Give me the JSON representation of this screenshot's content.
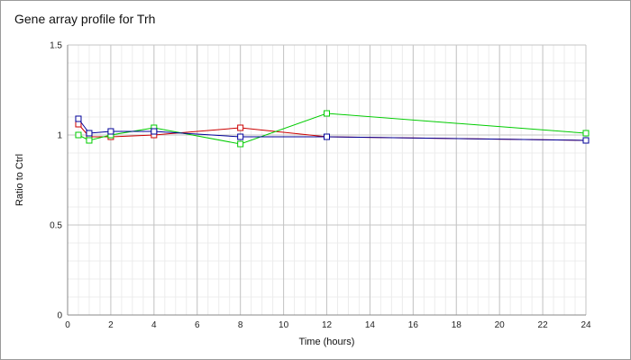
{
  "chart_data": {
    "type": "line",
    "title": "Gene array profile for Trh",
    "xlabel": "Time (hours)",
    "ylabel": "Ratio to Ctrl",
    "xlim": [
      0,
      24
    ],
    "ylim": [
      0,
      1.5
    ],
    "x_ticks": [
      "0",
      "2",
      "4",
      "6",
      "8",
      "10",
      "12",
      "14",
      "16",
      "18",
      "20",
      "22",
      "24"
    ],
    "y_ticks": [
      "0",
      "0.5",
      "1",
      "1.5"
    ],
    "grid": true,
    "legend": "none",
    "series": [
      {
        "color": "#cc0000",
        "x": [
          0.5,
          1,
          2,
          4,
          8,
          12,
          24
        ],
        "y": [
          1.06,
          0.99,
          0.99,
          1.0,
          1.04,
          0.99,
          0.97
        ]
      },
      {
        "color": "#00cc00",
        "x": [
          0.5,
          1,
          2,
          4,
          8,
          12,
          24
        ],
        "y": [
          1.0,
          0.97,
          1.0,
          1.04,
          0.95,
          1.12,
          1.01
        ]
      },
      {
        "color": "#000099",
        "x": [
          0.5,
          1,
          2,
          4,
          8,
          12,
          24
        ],
        "y": [
          1.09,
          1.01,
          1.02,
          1.02,
          0.99,
          0.99,
          0.97
        ]
      }
    ]
  }
}
